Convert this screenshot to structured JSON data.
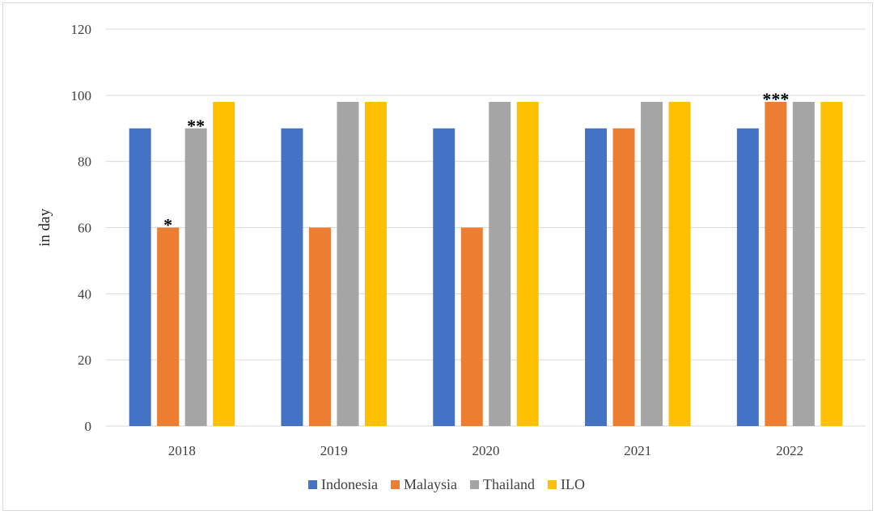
{
  "chart_data": {
    "type": "bar",
    "title": "",
    "xlabel": "",
    "ylabel": "in day",
    "ylim": [
      0,
      120
    ],
    "yticks": [
      0,
      20,
      40,
      60,
      80,
      100,
      120
    ],
    "grid": true,
    "legend_position": "bottom",
    "categories": [
      "2018",
      "2019",
      "2020",
      "2021",
      "2022"
    ],
    "series": [
      {
        "name": "Indonesia",
        "color": "#4472c4",
        "values": [
          90,
          90,
          90,
          90,
          90
        ]
      },
      {
        "name": "Malaysia",
        "color": "#ed7d31",
        "values": [
          60,
          60,
          60,
          90,
          98
        ]
      },
      {
        "name": "Thailand",
        "color": "#a5a5a5",
        "values": [
          90,
          98,
          98,
          98,
          98
        ]
      },
      {
        "name": "ILO",
        "color": "#ffc000",
        "values": [
          98,
          98,
          98,
          98,
          98
        ]
      }
    ],
    "annotations": [
      {
        "text": "*",
        "category": "2018",
        "series": "Malaysia"
      },
      {
        "text": "**",
        "category": "2018",
        "series": "Thailand"
      },
      {
        "text": "***",
        "category": "2022",
        "series": "Malaysia"
      }
    ]
  }
}
